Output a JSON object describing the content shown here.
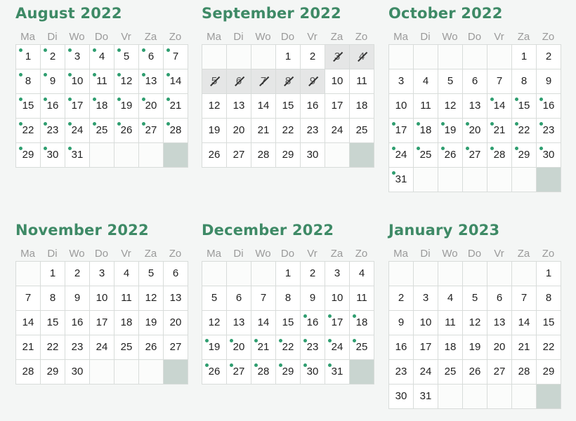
{
  "weekdays": [
    "Ma",
    "Di",
    "Wo",
    "Do",
    "Vr",
    "Za",
    "Zo"
  ],
  "colors": {
    "accent": "#3e8a66",
    "dot": "#2f9e70",
    "filler": "#c9d5d0",
    "blocked": "#e5e6e6"
  },
  "months": [
    {
      "title": "August 2022",
      "offset": 0,
      "days": 31,
      "dots": [
        1,
        2,
        3,
        4,
        5,
        6,
        7,
        8,
        9,
        10,
        11,
        12,
        13,
        14,
        15,
        16,
        17,
        18,
        19,
        20,
        21,
        22,
        23,
        24,
        25,
        26,
        27,
        28,
        29,
        30,
        31
      ],
      "blocked": []
    },
    {
      "title": "September 2022",
      "offset": 3,
      "days": 30,
      "dots": [],
      "blocked": [
        3,
        4,
        5,
        6,
        7,
        8,
        9
      ]
    },
    {
      "title": "October 2022",
      "offset": 5,
      "days": 31,
      "dots": [
        14,
        15,
        16,
        17,
        18,
        19,
        20,
        21,
        22,
        23,
        24,
        25,
        26,
        27,
        28,
        29,
        30,
        31
      ],
      "blocked": []
    },
    {
      "title": "November 2022",
      "offset": 1,
      "days": 30,
      "dots": [],
      "blocked": []
    },
    {
      "title": "December 2022",
      "offset": 3,
      "days": 31,
      "dots": [
        16,
        17,
        18,
        19,
        20,
        21,
        22,
        23,
        24,
        25,
        26,
        27,
        28,
        29,
        30,
        31
      ],
      "blocked": []
    },
    {
      "title": "January 2023",
      "offset": 6,
      "days": 31,
      "dots": [],
      "blocked": []
    }
  ]
}
